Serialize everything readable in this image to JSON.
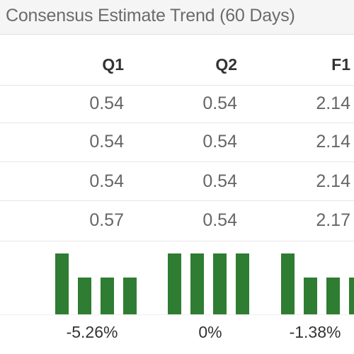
{
  "title": "Consensus Estimate Trend (60 Days)",
  "columns": [
    "Q1",
    "Q2",
    "F1"
  ],
  "rows": [
    [
      "0.54",
      "0.54",
      "2.14"
    ],
    [
      "0.54",
      "0.54",
      "2.14"
    ],
    [
      "0.54",
      "0.54",
      "2.14"
    ],
    [
      "0.57",
      "0.54",
      "2.17"
    ]
  ],
  "trend": {
    "Q1": {
      "values": [
        0.57,
        0.54,
        0.54,
        0.54
      ],
      "change": "-5.26%"
    },
    "Q2": {
      "values": [
        0.54,
        0.54,
        0.54,
        0.54
      ],
      "change": "0%"
    },
    "F1": {
      "values": [
        2.17,
        2.14,
        2.14,
        2.14
      ],
      "change": "-1.38%"
    }
  },
  "colors": {
    "bar": "#2e7d32",
    "title_bg": "#f5f5f5"
  }
}
